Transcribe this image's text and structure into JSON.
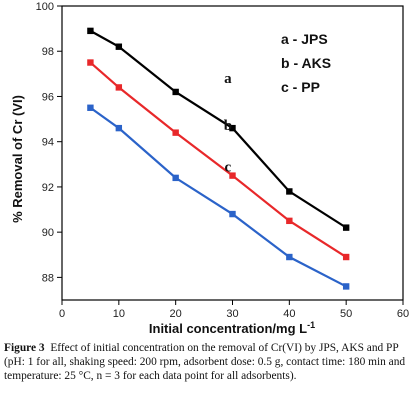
{
  "chart_data": {
    "type": "line",
    "xlabel": "Initial concentration/mg L",
    "xlabel_superscript": "-1",
    "ylabel": "% Removal of Cr (VI)",
    "xlim": [
      0,
      60
    ],
    "ylim": [
      87,
      100
    ],
    "x_ticks": [
      "0",
      "10",
      "20",
      "30",
      "40",
      "50",
      "60"
    ],
    "y_ticks": [
      "88",
      "90",
      "92",
      "94",
      "96",
      "98",
      "100"
    ],
    "x": [
      5,
      10,
      20,
      30,
      40,
      50
    ],
    "series": [
      {
        "name": "a - JPS",
        "tag": "a",
        "color": "#000000",
        "values": [
          98.9,
          98.2,
          96.2,
          94.6,
          91.8,
          90.2
        ]
      },
      {
        "name": "b - AKS",
        "tag": "b",
        "color": "#e8282a",
        "values": [
          97.5,
          96.4,
          94.4,
          92.5,
          90.5,
          88.9
        ]
      },
      {
        "name": "c - PP",
        "tag": "c",
        "color": "#2b63c9",
        "values": [
          95.5,
          94.6,
          92.4,
          90.8,
          88.9,
          87.6
        ]
      }
    ],
    "grid": false,
    "legend_position": "top-right"
  },
  "caption": {
    "label": "Figure 3",
    "text": "Effect of initial concentration on the removal of Cr(VI) by JPS, AKS and PP (pH: 1 for all, shaking speed: 200 rpm, adsorbent dose: 0.5 g, contact time: 180 min and temperature: 25 °C, n = 3 for each data point for all adsorbents)."
  }
}
